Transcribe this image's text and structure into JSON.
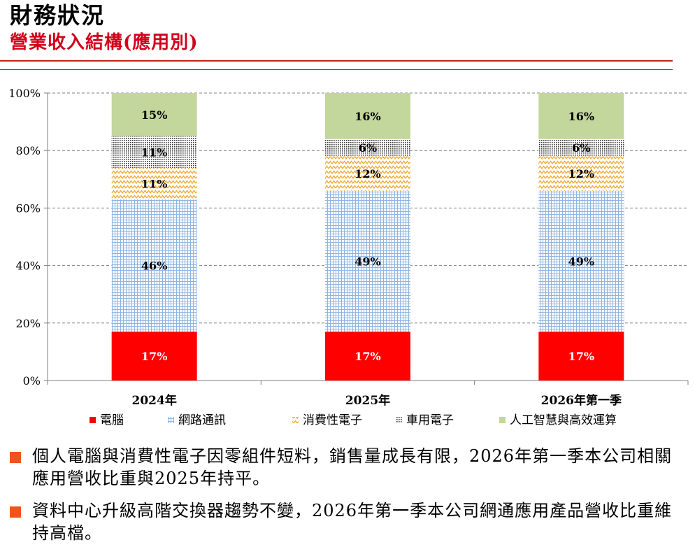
{
  "header": {
    "title": "財務狀況",
    "subtitle": "營業收入結構(應用別)"
  },
  "chart_data": {
    "type": "bar",
    "stacked": true,
    "categories": [
      "2024年",
      "2025年",
      "2026年第一季"
    ],
    "ylim": [
      0,
      100
    ],
    "yticks": [
      "0%",
      "20%",
      "40%",
      "60%",
      "80%",
      "100%"
    ],
    "grid": true,
    "legend_position": "bottom",
    "series": [
      {
        "name": "電腦",
        "values": [
          17,
          17,
          17
        ],
        "labels": [
          "17%",
          "17%",
          "17%"
        ],
        "color": "#ff0000",
        "pattern": "solid"
      },
      {
        "name": "網路通訊",
        "values": [
          46,
          49,
          49
        ],
        "labels": [
          "46%",
          "49%",
          "49%"
        ],
        "color": "#9dc3e6",
        "pattern": "grid"
      },
      {
        "name": "消費性電子",
        "values": [
          11,
          12,
          12
        ],
        "labels": [
          "11%",
          "12%",
          "12%"
        ],
        "color": "#f4b942",
        "pattern": "zigzag"
      },
      {
        "name": "車用電子",
        "values": [
          11,
          6,
          6
        ],
        "labels": [
          "11%",
          "6%",
          "6%"
        ],
        "color": "#404040",
        "pattern": "dots"
      },
      {
        "name": "人工智慧與高效運算",
        "values": [
          15,
          16,
          16
        ],
        "labels": [
          "15%",
          "16%",
          "16%"
        ],
        "color": "#c3d69b",
        "pattern": "solid"
      }
    ]
  },
  "bullets": [
    {
      "text": "個人電腦與消費性電子因零組件短料，銷售量成長有限，2026年第一季本公司相關應用營收比重與2025年持平。"
    },
    {
      "text": "資料中心升級高階交換器趨勢不變，2026年第一季本公司網通應用產品營收比重維持高檔。"
    }
  ]
}
